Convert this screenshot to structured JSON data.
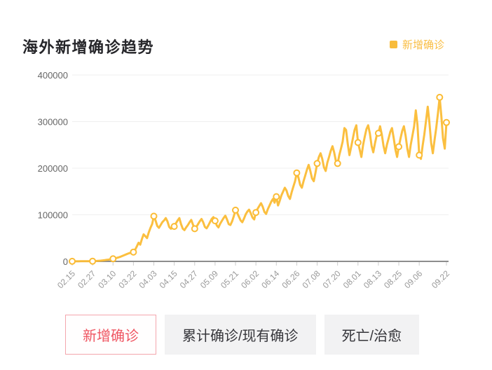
{
  "header": {
    "title": "海外新增确诊趋势"
  },
  "legend": {
    "label": "新增确诊",
    "color": "#F8BC3C"
  },
  "chart_data": {
    "type": "line",
    "title": "海外新增确诊趋势",
    "series_name": "新增确诊",
    "line_color": "#FBBC35",
    "marker_fill": "#ffffff",
    "grid_color": "#efefef",
    "axis_color": "#8d8d8d",
    "tick_mark_color": "#cccccc",
    "y_label_color": "#666666",
    "x_label_color": "#999999",
    "ylim": [
      0,
      400000
    ],
    "y_ticks": [
      0,
      100000,
      200000,
      300000,
      400000
    ],
    "y_tick_labels": [
      "0",
      "100000",
      "200000",
      "300000",
      "400000"
    ],
    "x_tick_labels": [
      "02.15",
      "02.27",
      "03.10",
      "03.22",
      "04.03",
      "04.15",
      "04.27",
      "05.09",
      "05.21",
      "06.02",
      "06.14",
      "06.26",
      "07.08",
      "07.20",
      "08.01",
      "08.13",
      "08.25",
      "09.06",
      "09.22"
    ],
    "x_label_day_index": [
      0,
      12,
      24,
      36,
      48,
      60,
      72,
      84,
      96,
      108,
      120,
      132,
      144,
      156,
      168,
      180,
      192,
      204,
      220
    ],
    "marker_day_interval": 12,
    "marker_on_last_point": true,
    "grid_on": true,
    "legend_position": "top-right",
    "daily_values_start_date": "02.15",
    "values": [
      200,
      150,
      150,
      150,
      200,
      250,
      300,
      350,
      400,
      450,
      500,
      450,
      400,
      600,
      800,
      1000,
      1300,
      1700,
      2100,
      2600,
      3100,
      3600,
      4100,
      4800,
      5500,
      6300,
      7200,
      8200,
      9500,
      11000,
      12500,
      14000,
      15500,
      17000,
      18000,
      19000,
      20000,
      25000,
      32000,
      40000,
      36000,
      48000,
      58000,
      54000,
      50000,
      62000,
      72000,
      80000,
      97000,
      88000,
      76000,
      72000,
      78000,
      84000,
      88000,
      93000,
      86000,
      74000,
      70000,
      72000,
      75000,
      82000,
      88000,
      93000,
      80000,
      70000,
      67000,
      73000,
      78000,
      84000,
      89000,
      79000,
      70000,
      74000,
      80000,
      86000,
      91000,
      84000,
      74000,
      71000,
      77000,
      84000,
      91000,
      95000,
      87000,
      77000,
      73000,
      81000,
      87000,
      93000,
      98000,
      90000,
      80000,
      78000,
      86000,
      97000,
      110000,
      104000,
      96000,
      88000,
      84000,
      92000,
      101000,
      107000,
      111000,
      103000,
      94000,
      90000,
      105000,
      113000,
      119000,
      125000,
      117000,
      106000,
      102000,
      112000,
      120000,
      128000,
      134000,
      126000,
      139000,
      120000,
      130000,
      142000,
      150000,
      158000,
      152000,
      140000,
      134000,
      148000,
      160000,
      172000,
      190000,
      180000,
      164000,
      158000,
      172000,
      184000,
      197000,
      207000,
      194000,
      178000,
      172000,
      190000,
      210000,
      224000,
      232000,
      220000,
      202000,
      194000,
      212000,
      224000,
      237000,
      247000,
      234000,
      216000,
      210000,
      228000,
      242000,
      257000,
      286000,
      282000,
      252000,
      228000,
      246000,
      264000,
      282000,
      292000,
      255000,
      240000,
      224000,
      250000,
      268000,
      284000,
      292000,
      274000,
      248000,
      234000,
      254000,
      270000,
      275000,
      290000,
      272000,
      248000,
      232000,
      250000,
      264000,
      278000,
      286000,
      264000,
      240000,
      224000,
      246000,
      264000,
      280000,
      290000,
      270000,
      242000,
      224000,
      250000,
      270000,
      290000,
      324000,
      292000,
      228000,
      220000,
      248000,
      272000,
      302000,
      332000,
      298000,
      254000,
      232000,
      260000,
      286000,
      318000,
      352000,
      312000,
      264000,
      242000,
      298000
    ]
  },
  "tabs": [
    {
      "label": "新增确诊",
      "active": true
    },
    {
      "label": "累计确诊/现有确诊",
      "active": false
    },
    {
      "label": "死亡/治愈",
      "active": false
    }
  ]
}
